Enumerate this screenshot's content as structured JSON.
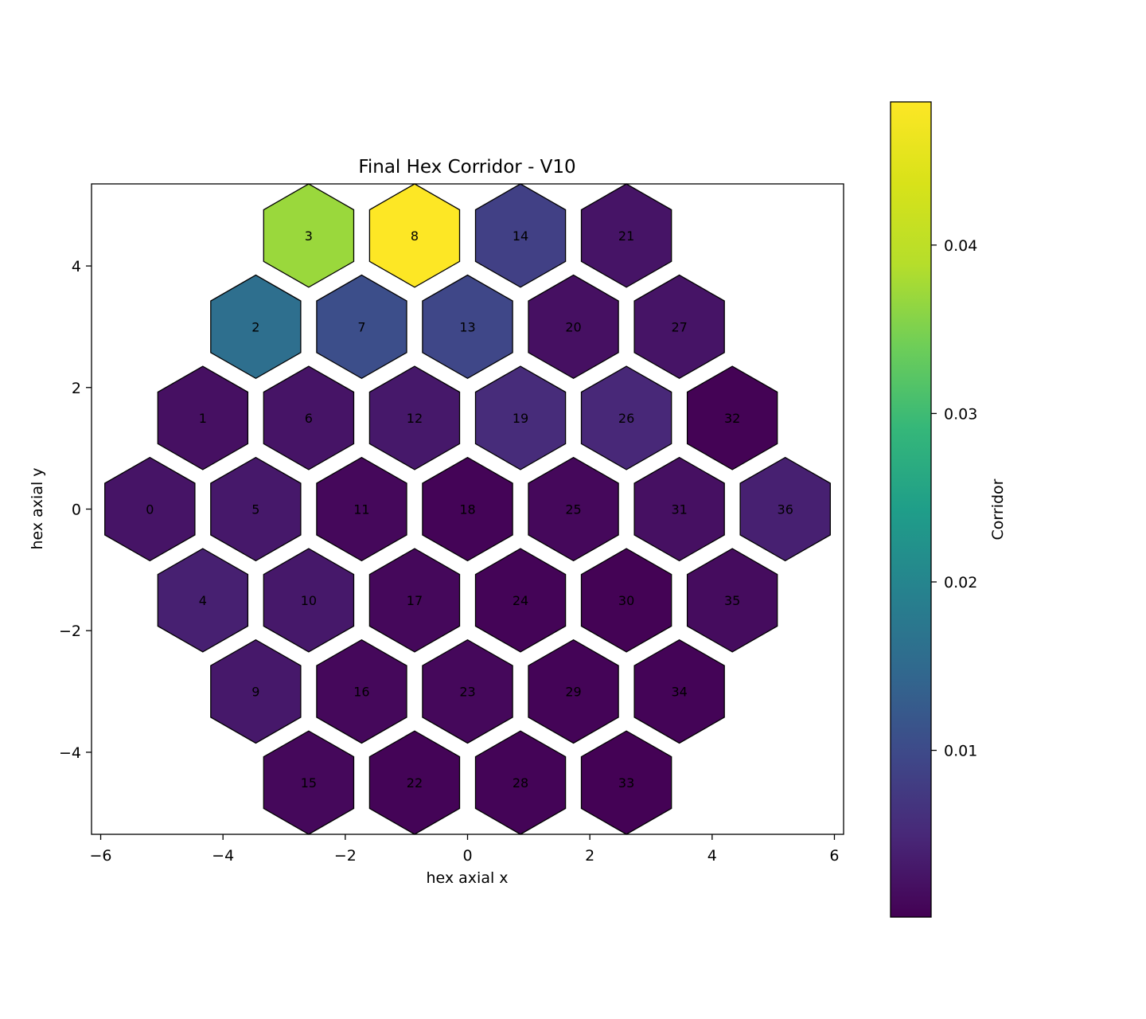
{
  "chart_data": {
    "type": "heatmap",
    "title": "Final Hex Corridor - V10",
    "xlabel": "hex axial x",
    "ylabel": "hex axial y",
    "xlim": [
      -6.15,
      6.15
    ],
    "ylim": [
      -5.35,
      5.35
    ],
    "x_ticks": [
      -6,
      -4,
      -2,
      0,
      2,
      4,
      6
    ],
    "y_ticks": [
      -4,
      -2,
      0,
      2,
      4
    ],
    "colorbar": {
      "label": "Corridor",
      "range": [
        0.0001,
        0.0485
      ],
      "ticks": [
        0.01,
        0.02,
        0.03,
        0.04
      ],
      "colormap": "viridis"
    },
    "cells": [
      {
        "id": "0",
        "x": -5.196,
        "y": 0.0,
        "value": 0.0025
      },
      {
        "id": "1",
        "x": -4.33,
        "y": 1.5,
        "value": 0.002
      },
      {
        "id": "2",
        "x": -3.464,
        "y": 3.0,
        "value": 0.016
      },
      {
        "id": "3",
        "x": -2.598,
        "y": 4.5,
        "value": 0.037
      },
      {
        "id": "4",
        "x": -4.33,
        "y": -1.5,
        "value": 0.004
      },
      {
        "id": "5",
        "x": -3.464,
        "y": 0.0,
        "value": 0.003
      },
      {
        "id": "6",
        "x": -2.598,
        "y": 1.5,
        "value": 0.0025
      },
      {
        "id": "7",
        "x": -1.732,
        "y": 3.0,
        "value": 0.0105
      },
      {
        "id": "8",
        "x": -0.866,
        "y": 4.5,
        "value": 0.0485
      },
      {
        "id": "9",
        "x": -3.464,
        "y": -3.0,
        "value": 0.003
      },
      {
        "id": "10",
        "x": -2.598,
        "y": -1.5,
        "value": 0.003
      },
      {
        "id": "11",
        "x": -1.732,
        "y": 0.0,
        "value": 0.001
      },
      {
        "id": "12",
        "x": -0.866,
        "y": 1.5,
        "value": 0.003
      },
      {
        "id": "13",
        "x": 0.0,
        "y": 3.0,
        "value": 0.0095
      },
      {
        "id": "14",
        "x": 0.866,
        "y": 4.5,
        "value": 0.0085
      },
      {
        "id": "15",
        "x": -2.598,
        "y": -4.5,
        "value": 0.001
      },
      {
        "id": "16",
        "x": -1.732,
        "y": -3.0,
        "value": 0.001
      },
      {
        "id": "17",
        "x": -0.866,
        "y": -1.5,
        "value": 0.001
      },
      {
        "id": "18",
        "x": 0.0,
        "y": 0.0,
        "value": 0.0005
      },
      {
        "id": "19",
        "x": 0.866,
        "y": 1.5,
        "value": 0.0055
      },
      {
        "id": "20",
        "x": 1.732,
        "y": 3.0,
        "value": 0.002
      },
      {
        "id": "21",
        "x": 2.598,
        "y": 4.5,
        "value": 0.0025
      },
      {
        "id": "22",
        "x": -0.866,
        "y": -4.5,
        "value": 0.0005
      },
      {
        "id": "23",
        "x": 0.0,
        "y": -3.0,
        "value": 0.001
      },
      {
        "id": "24",
        "x": 0.866,
        "y": -1.5,
        "value": 0.0005
      },
      {
        "id": "25",
        "x": 1.732,
        "y": 0.0,
        "value": 0.001
      },
      {
        "id": "26",
        "x": 2.598,
        "y": 1.5,
        "value": 0.005
      },
      {
        "id": "27",
        "x": 3.464,
        "y": 3.0,
        "value": 0.0025
      },
      {
        "id": "28",
        "x": 0.866,
        "y": -4.5,
        "value": 0.0005
      },
      {
        "id": "29",
        "x": 1.732,
        "y": -3.0,
        "value": 0.0005
      },
      {
        "id": "30",
        "x": 2.598,
        "y": -1.5,
        "value": 0.0003
      },
      {
        "id": "31",
        "x": 3.464,
        "y": 0.0,
        "value": 0.002
      },
      {
        "id": "32",
        "x": 4.33,
        "y": 1.5,
        "value": 0.0003
      },
      {
        "id": "33",
        "x": 2.598,
        "y": -4.5,
        "value": 0.0002
      },
      {
        "id": "34",
        "x": 3.464,
        "y": -3.0,
        "value": 0.0005
      },
      {
        "id": "35",
        "x": 4.33,
        "y": -1.5,
        "value": 0.0015
      },
      {
        "id": "36",
        "x": 5.196,
        "y": 0.0,
        "value": 0.004
      }
    ]
  }
}
